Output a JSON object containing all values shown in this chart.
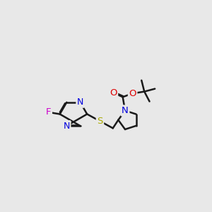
{
  "bg_color": "#e8e8e8",
  "bond_color": "#1a1a1a",
  "N_color": "#0000dd",
  "O_color": "#dd0000",
  "S_color": "#aaaa00",
  "F_color": "#cc00cc",
  "line_width": 1.8,
  "doffset": 0.035,
  "xlim": [
    -0.5,
    6.5
  ],
  "ylim": [
    0.5,
    5.5
  ]
}
